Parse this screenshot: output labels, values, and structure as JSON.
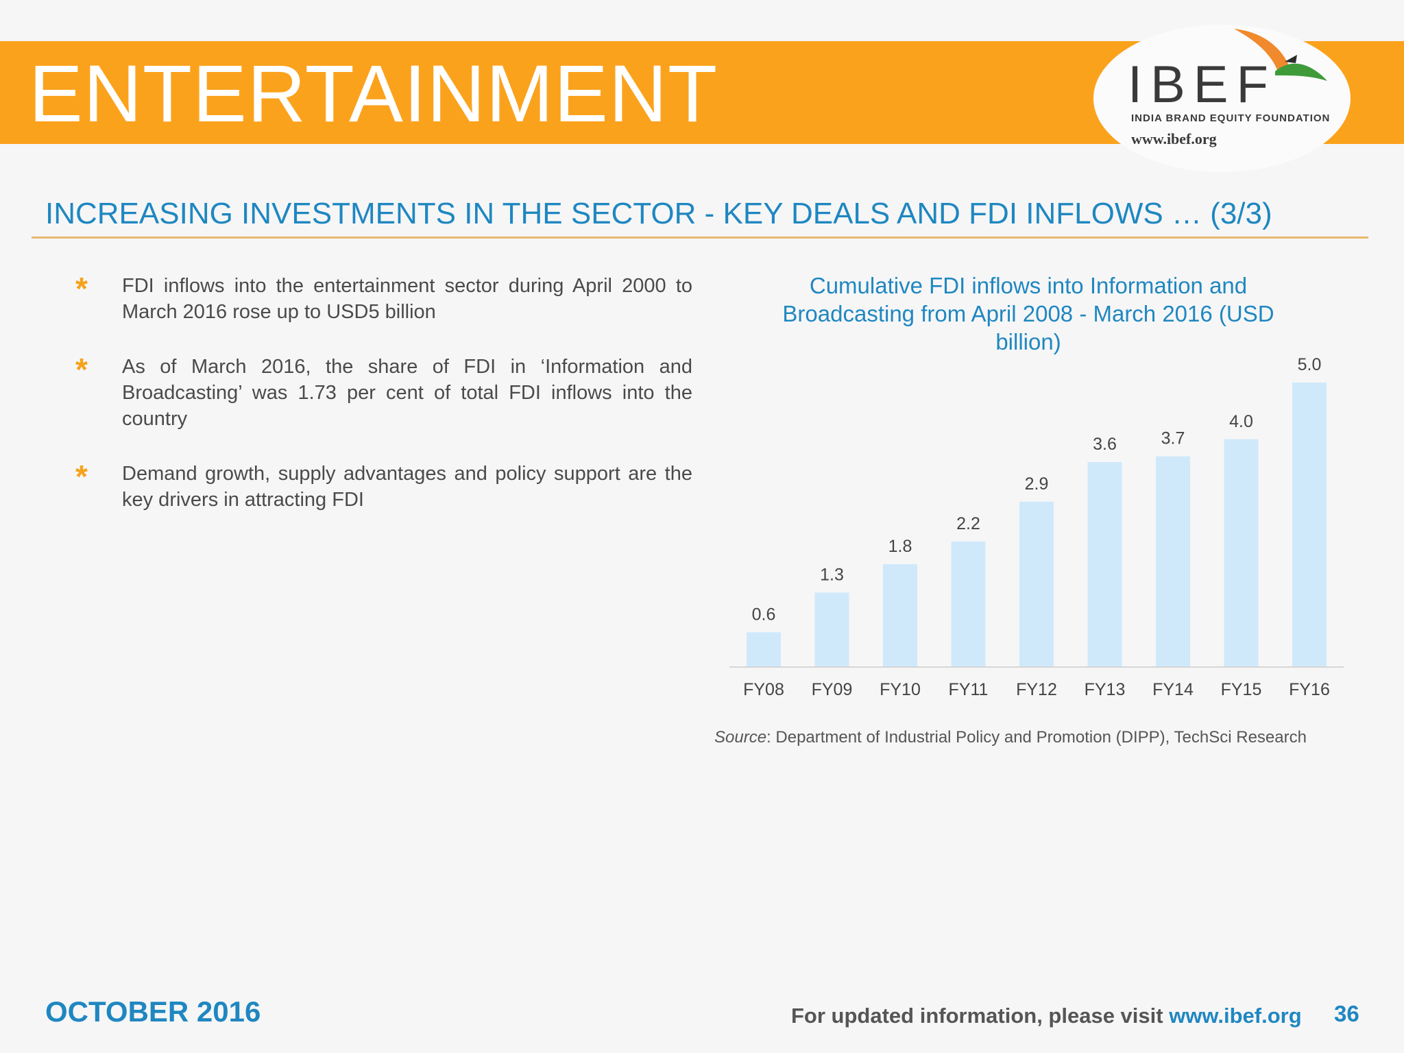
{
  "banner": {
    "title": "ENTERTAINMENT"
  },
  "logo": {
    "name": "IBEF",
    "tagline": "INDIA BRAND EQUITY FOUNDATION",
    "url": "www.ibef.org"
  },
  "heading": "INCREASING INVESTMENTS IN THE SECTOR - KEY DEALS AND FDI INFLOWS … (3/3)",
  "bullets": [
    {
      "icon": "asterisk-icon",
      "text": "FDI inflows into the entertainment sector during April 2000 to March 2016 rose up to USD5 billion"
    },
    {
      "icon": "asterisk-icon",
      "text": "As of March 2016, the share of FDI in ‘Information and Broadcasting’ was 1.73 per cent of total FDI inflows into the country"
    },
    {
      "icon": "asterisk-icon",
      "text": "Demand growth, supply advantages and policy support are the key drivers in attracting FDI"
    }
  ],
  "chart_data": {
    "type": "bar",
    "title": "Cumulative FDI inflows into Information and Broadcasting from April 2008 -  March 2016 (USD billion)",
    "categories": [
      "FY08",
      "FY09",
      "FY10",
      "FY11",
      "FY12",
      "FY13",
      "FY14",
      "FY15",
      "FY16"
    ],
    "values": [
      0.6,
      1.3,
      1.8,
      2.2,
      2.9,
      3.6,
      3.7,
      4.0,
      5.0
    ],
    "data_labels": [
      "0.6",
      "1.3",
      "1.8",
      "2.2",
      "2.9",
      "3.6",
      "3.7",
      "4.0",
      "5.0"
    ],
    "xlabel": "",
    "ylabel": "",
    "ylim": [
      0,
      5.0
    ],
    "grid": false,
    "bar_color": "#cfe9fb"
  },
  "source": {
    "label": "Source",
    "text": ": Department of Industrial Policy and Promotion (DIPP), TechSci Research"
  },
  "footer": {
    "date": "OCTOBER 2016",
    "visit_text": "For updated information, please visit ",
    "visit_url": "www.ibef.org",
    "page": "36"
  },
  "colors": {
    "banner": "#fba21c",
    "accent_blue": "#1f87c0",
    "bullet_star": "#f5a21b"
  }
}
